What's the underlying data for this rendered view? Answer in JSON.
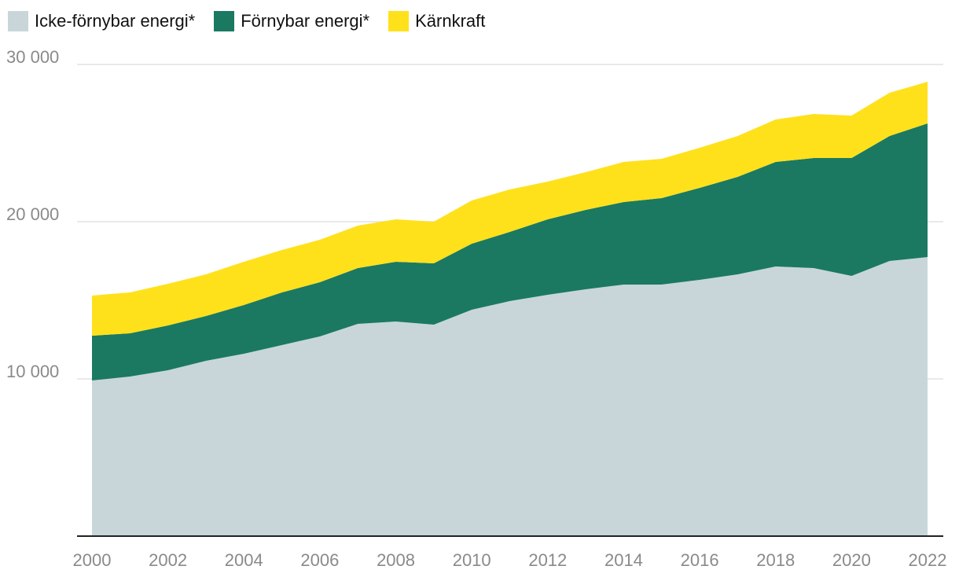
{
  "chart_data": {
    "type": "area",
    "stacked": true,
    "title": "",
    "xlabel": "",
    "ylabel": "",
    "x": [
      2000,
      2001,
      2002,
      2003,
      2004,
      2005,
      2006,
      2007,
      2008,
      2009,
      2010,
      2011,
      2012,
      2013,
      2014,
      2015,
      2016,
      2017,
      2018,
      2019,
      2020,
      2021,
      2022
    ],
    "series": [
      {
        "name": "Icke-förnybar energi*",
        "color": "#c8d6da",
        "values": [
          9900,
          10150,
          10550,
          11150,
          11600,
          12150,
          12700,
          13500,
          13650,
          13450,
          14400,
          14950,
          15350,
          15700,
          16000,
          16000,
          16300,
          16650,
          17150,
          17050,
          16550,
          17500,
          17750
        ]
      },
      {
        "name": "Förnybar energi*",
        "color": "#1b7962",
        "values": [
          2850,
          2750,
          2850,
          2850,
          3100,
          3350,
          3450,
          3550,
          3800,
          3900,
          4200,
          4400,
          4800,
          5050,
          5250,
          5500,
          5850,
          6200,
          6650,
          7000,
          7500,
          7950,
          8500
        ]
      },
      {
        "name": "Kärnkraft",
        "color": "#ffe11b",
        "values": [
          2550,
          2600,
          2650,
          2650,
          2750,
          2700,
          2700,
          2700,
          2700,
          2650,
          2750,
          2700,
          2400,
          2400,
          2550,
          2500,
          2550,
          2600,
          2700,
          2800,
          2700,
          2750,
          2650
        ]
      }
    ],
    "ylim": [
      0,
      30000
    ],
    "y_ticks": [
      10000,
      20000,
      30000
    ],
    "y_tick_labels": [
      "10 000",
      "20 000",
      "30 000"
    ],
    "x_ticks": [
      2000,
      2002,
      2004,
      2006,
      2008,
      2010,
      2012,
      2014,
      2016,
      2018,
      2020,
      2022
    ],
    "x_tick_labels": [
      "2000",
      "2002",
      "2004",
      "2006",
      "2008",
      "2010",
      "2012",
      "2014",
      "2016",
      "2018",
      "2020",
      "2022"
    ],
    "grid": true,
    "legend_position": "top-left",
    "colors": {
      "grid": "#e2e2e2",
      "axis": "#222222",
      "tick_text": "#8a8a8a"
    }
  }
}
